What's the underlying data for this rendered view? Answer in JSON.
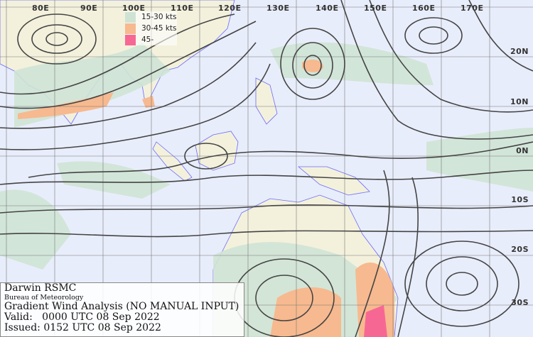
{
  "map": {
    "longitude_labels": [
      "80E",
      "90E",
      "100E",
      "110E",
      "120E",
      "130E",
      "140E",
      "150E",
      "160E",
      "170E"
    ],
    "latitude_labels": [
      "20N",
      "10N",
      "0N",
      "10S",
      "20S",
      "30S"
    ],
    "colors": {
      "ocean": "#e8edfb",
      "land": "#f3f1dc",
      "coast": "#6a6aff",
      "streamline": "#444444",
      "grid": "#777777"
    }
  },
  "legend": {
    "items": [
      {
        "label": "15-30 kts",
        "color": "#cfe3d5"
      },
      {
        "label": "30-45 kts",
        "color": "#f7b98f"
      },
      {
        "label": "45-",
        "color": "#f76794"
      }
    ]
  },
  "info": {
    "centre": "Darwin RSMC",
    "agency": "Bureau of Meteorology",
    "product": "Gradient Wind Analysis (NO MANUAL INPUT)",
    "valid": "Valid:   0000 UTC 08 Sep 2022",
    "issued": "Issued: 0152 UTC 08 Sep 2022"
  }
}
